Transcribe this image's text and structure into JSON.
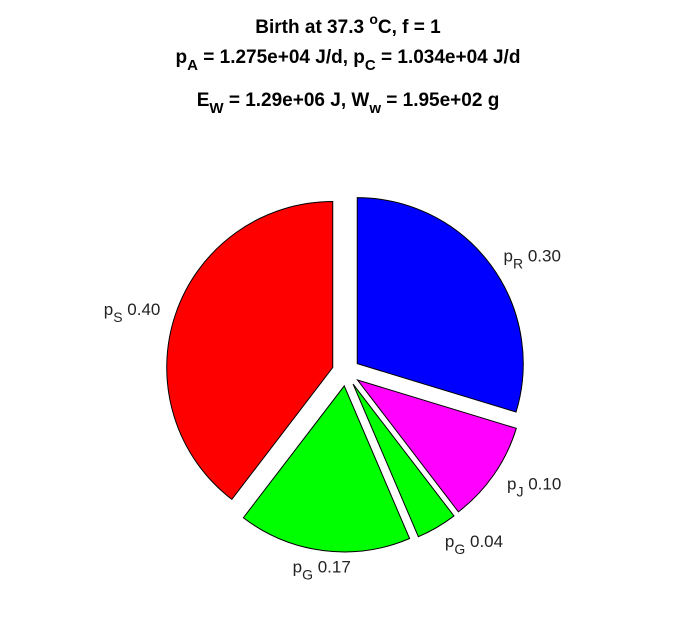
{
  "chart_data": {
    "type": "pie",
    "title_lines": [
      {
        "segments": [
          {
            "t": "Birth at 37.3 "
          },
          {
            "t": "o",
            "sup": true
          },
          {
            "t": "C, f = 1"
          }
        ]
      },
      {
        "segments": [
          {
            "t": "p"
          },
          {
            "t": "A",
            "sub": true
          },
          {
            "t": " = 1.275e+04 J/d, p"
          },
          {
            "t": "C",
            "sub": true
          },
          {
            "t": " = 1.034e+04 J/d"
          }
        ]
      },
      {
        "segments": [
          {
            "t": "E"
          },
          {
            "t": "W",
            "sub": true
          },
          {
            "t": " = 1.29e+06 J, W"
          },
          {
            "t": "w",
            "sub": true
          },
          {
            "t": " = 1.95e+02 g"
          }
        ]
      }
    ],
    "slices": [
      {
        "base": "p",
        "sub": "R",
        "value": 0.3,
        "label": "0.30",
        "color": "#0000ff",
        "exploded": true
      },
      {
        "base": "p",
        "sub": "J",
        "value": 0.1,
        "label": "0.10",
        "color": "#ff00ff",
        "exploded": true
      },
      {
        "base": "p",
        "sub": "G",
        "value": 0.04,
        "label": "0.04",
        "color": "#00ff00",
        "exploded": true
      },
      {
        "base": "p",
        "sub": "G",
        "value": 0.17,
        "label": "0.17",
        "color": "#00ff00",
        "exploded": true
      },
      {
        "base": "p",
        "sub": "S",
        "value": 0.4,
        "label": "0.40",
        "color": "#ff0000",
        "exploded": true
      }
    ],
    "start_angle": "12 o'clock",
    "direction": "clockwise"
  }
}
